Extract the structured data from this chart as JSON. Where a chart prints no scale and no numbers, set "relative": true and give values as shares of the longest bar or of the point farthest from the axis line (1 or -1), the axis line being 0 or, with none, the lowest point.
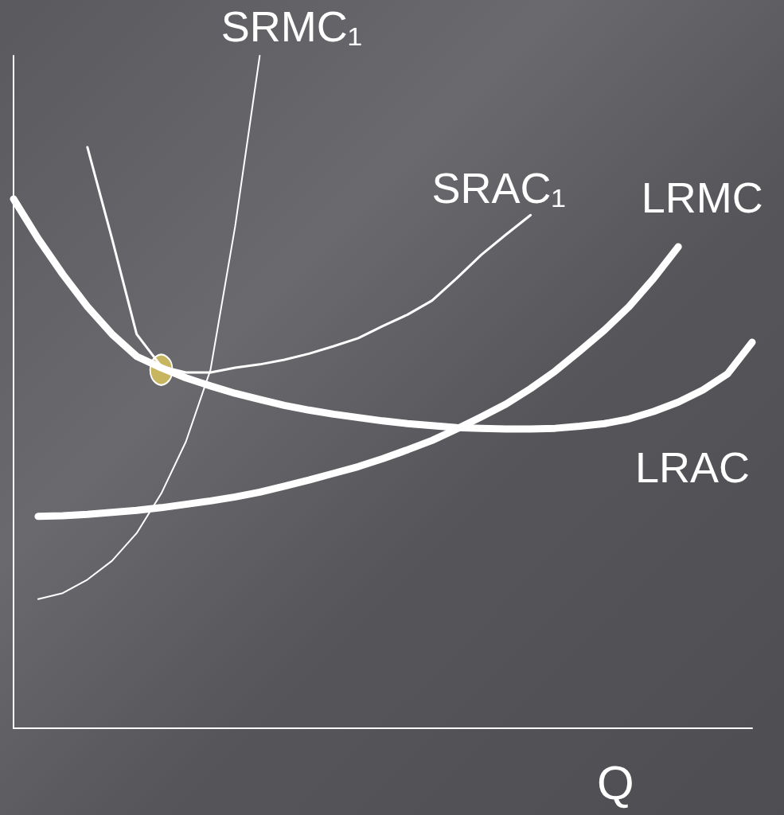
{
  "chart_data": {
    "type": "line",
    "xlabel": "Q",
    "relative": true,
    "marker": "none",
    "categories": [
      null,
      null,
      null,
      null,
      null,
      null,
      null,
      null,
      null,
      null,
      null,
      null,
      null,
      null,
      null,
      null,
      null,
      null,
      null,
      null,
      null,
      null,
      null,
      null,
      null,
      null,
      null,
      null,
      null,
      null,
      null
    ],
    "series": [
      {
        "name": "LRAC",
        "color": "#ffffff",
        "values": [
          0.787,
          0.728,
          0.675,
          0.627,
          0.586,
          0.553,
          0.536,
          0.521,
          0.509,
          0.498,
          0.489,
          0.48,
          0.473,
          0.467,
          0.462,
          0.457,
          0.453,
          0.45,
          0.447,
          0.446,
          0.445,
          0.445,
          0.446,
          0.449,
          0.453,
          0.46,
          0.471,
          0.485,
          0.503,
          0.527,
          0.574
        ]
      },
      {
        "name": "LRMC",
        "color": "#ffffff",
        "values": [
          null,
          0.315,
          0.316,
          0.318,
          0.321,
          0.324,
          0.328,
          0.333,
          0.338,
          0.344,
          0.351,
          0.36,
          0.369,
          0.379,
          0.389,
          0.401,
          0.414,
          0.428,
          0.445,
          0.463,
          0.482,
          0.505,
          0.531,
          0.561,
          0.592,
          0.627,
          0.669,
          0.716,
          null,
          null,
          null
        ]
      },
      {
        "name": "SRMC₁",
        "color": "#ffffff",
        "values": [
          null,
          0.192,
          0.201,
          0.221,
          0.249,
          0.29,
          0.349,
          0.426,
          0.533,
          0.746,
          1.0,
          null,
          null,
          null,
          null,
          null,
          null,
          null,
          null,
          null,
          null,
          null,
          null,
          null,
          null,
          null,
          null,
          null,
          null,
          null,
          null
        ]
      },
      {
        "name": "SRAC₁",
        "color": "#ffffff",
        "values": [
          null,
          null,
          null,
          0.864,
          0.728,
          0.586,
          0.538,
          0.529,
          0.529,
          0.536,
          0.541,
          0.548,
          0.557,
          0.568,
          0.58,
          0.598,
          0.615,
          0.636,
          0.669,
          0.704,
          0.734,
          0.763,
          null,
          null,
          null,
          null,
          null,
          null,
          null,
          null,
          null
        ]
      },
      {
        "type": "line",
        "marker": "circle",
        "color": "#c8b560",
        "values": [
          null,
          null,
          null,
          null,
          null,
          null,
          0.533,
          null,
          null,
          null,
          null,
          null,
          null,
          null,
          null,
          null,
          null,
          null,
          null,
          null,
          null,
          null,
          null,
          null,
          null,
          null,
          null,
          null,
          null,
          null,
          null
        ]
      }
    ]
  }
}
